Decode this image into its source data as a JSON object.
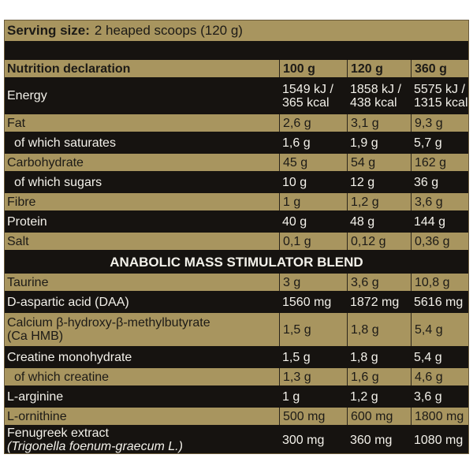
{
  "serving": {
    "label": "Serving size:",
    "value": "2 heaped scoops (120 g)"
  },
  "header": {
    "name": "Nutrition declaration",
    "cols": [
      "100 g",
      "120 g",
      "360 g"
    ]
  },
  "nutrition": [
    {
      "name": "Energy",
      "v": [
        "1549 kJ /",
        "1858 kJ /",
        "5575 kJ /"
      ],
      "v2": [
        "365 kcal",
        "438 kcal",
        "1315 kcal"
      ]
    },
    {
      "name": "Fat",
      "v": [
        "2,6 g",
        "3,1 g",
        "9,3 g"
      ]
    },
    {
      "name": "of which saturates",
      "v": [
        "1,6 g",
        "1,9 g",
        "5,7 g"
      ]
    },
    {
      "name": "Carbohydrate",
      "v": [
        "45 g",
        "54 g",
        "162 g"
      ]
    },
    {
      "name": "of which sugars",
      "v": [
        "10 g",
        "12 g",
        "36 g"
      ]
    },
    {
      "name": "Fibre",
      "v": [
        "1 g",
        "1,2 g",
        "3,6 g"
      ]
    },
    {
      "name": "Protein",
      "v": [
        "40 g",
        "48 g",
        "144 g"
      ]
    },
    {
      "name": "Salt",
      "v": [
        "0,1 g",
        "0,12 g",
        "0,36 g"
      ]
    }
  ],
  "blend_title": "ANABOLIC MASS STIMULATOR BLEND",
  "blend": [
    {
      "name": "Taurine",
      "v": [
        "3 g",
        "3,6 g",
        "10,8 g"
      ]
    },
    {
      "name": "D-aspartic acid (DAA)",
      "v": [
        "1560 mg",
        "1872 mg",
        "5616 mg"
      ]
    },
    {
      "name": "Calcium β-hydroxy-β-methylbutyrate",
      "name2": "(Ca HMB)",
      "v": [
        "1,5 g",
        "1,8 g",
        "5,4 g"
      ]
    },
    {
      "name": "Creatine monohydrate",
      "v": [
        "1,5 g",
        "1,8 g",
        "5,4 g"
      ]
    },
    {
      "name": "of which creatine",
      "v": [
        "1,3 g",
        "1,6 g",
        "4,6 g"
      ]
    },
    {
      "name": "L-arginine",
      "v": [
        "1 g",
        "1,2 g",
        "3,6 g"
      ]
    },
    {
      "name": "L-ornithine",
      "v": [
        "500 mg",
        "600 mg",
        "1800 mg"
      ]
    },
    {
      "name": "Fenugreek extract",
      "name2": "(Trigonella foenum-graecum L.)",
      "v": [
        "300 mg",
        "360 mg",
        "1080 mg"
      ]
    }
  ]
}
